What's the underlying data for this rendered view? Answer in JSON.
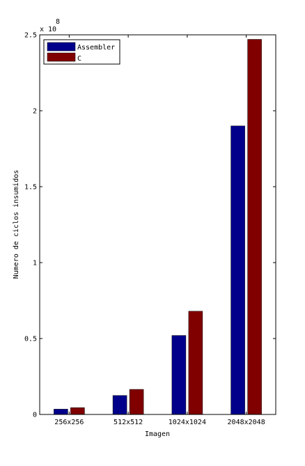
{
  "chart_data": {
    "type": "bar",
    "title": "",
    "xlabel": "Imagen",
    "ylabel": "Numero de ciclos insumidos",
    "categories": [
      "256x256",
      "512x512",
      "1024x1024",
      "2048x2048"
    ],
    "series": [
      {
        "name": "Assembler",
        "color": "#00008b",
        "values": [
          0.035,
          0.125,
          0.52,
          1.9
        ]
      },
      {
        "name": "C",
        "color": "#800000",
        "values": [
          0.045,
          0.165,
          0.68,
          2.47
        ]
      }
    ],
    "ylim": [
      0,
      2.5
    ],
    "yticks": [
      0,
      0.5,
      1,
      1.5,
      2,
      2.5
    ],
    "ytick_labels": [
      "0",
      "0.5",
      "1",
      "1.5",
      "2",
      "2.5"
    ],
    "y_exponent": {
      "base": "x 10",
      "power": "8"
    },
    "grid": false,
    "legend_position": "top-left"
  }
}
